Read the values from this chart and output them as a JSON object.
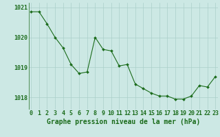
{
  "x": [
    0,
    1,
    2,
    3,
    4,
    5,
    6,
    7,
    8,
    9,
    10,
    11,
    12,
    13,
    14,
    15,
    16,
    17,
    18,
    19,
    20,
    21,
    22,
    23
  ],
  "y": [
    1020.85,
    1020.85,
    1020.45,
    1020.0,
    1019.65,
    1019.1,
    1018.8,
    1018.85,
    1020.0,
    1019.6,
    1019.55,
    1019.05,
    1019.1,
    1018.45,
    1018.3,
    1018.15,
    1018.05,
    1018.05,
    1017.95,
    1017.95,
    1018.05,
    1018.4,
    1018.35,
    1018.7
  ],
  "line_color": "#1a6b1a",
  "marker": "D",
  "marker_size": 2.0,
  "bg_color": "#cce8e4",
  "grid_color": "#aacfc9",
  "text_color": "#1a6b1a",
  "xlabel": "Graphe pression niveau de la mer (hPa)",
  "ylim": [
    1017.6,
    1021.15
  ],
  "yticks": [
    1018,
    1019,
    1020,
    1021
  ],
  "xticks": [
    0,
    1,
    2,
    3,
    4,
    5,
    6,
    7,
    8,
    9,
    10,
    11,
    12,
    13,
    14,
    15,
    16,
    17,
    18,
    19,
    20,
    21,
    22,
    23
  ],
  "xlabel_fontsize": 7.0,
  "tick_fontsize": 6.0,
  "linewidth": 0.8
}
